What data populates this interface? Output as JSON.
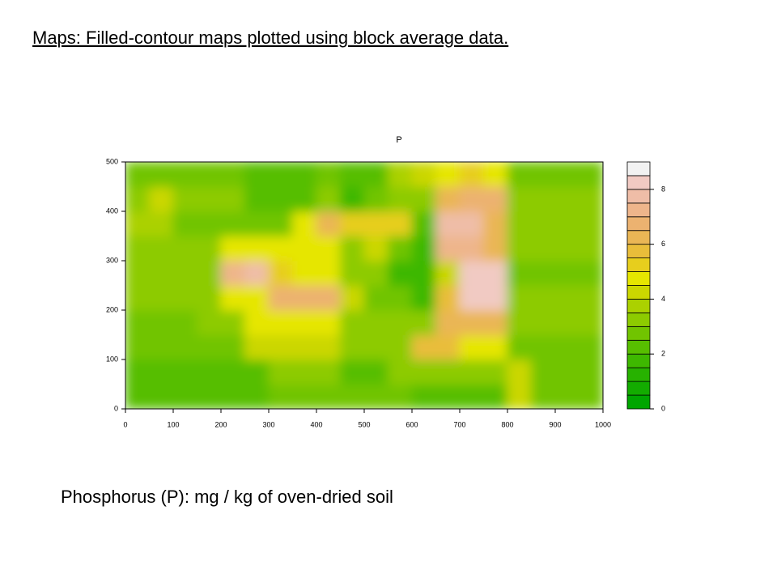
{
  "slide_title": "Maps: Filled-contour maps plotted using block average data.",
  "caption": "Phosphorus (P): mg / kg of oven-dried soil",
  "chart_data": {
    "type": "filled-contour",
    "title": "P",
    "x_edges": [
      0,
      50,
      100,
      150,
      200,
      250,
      300,
      350,
      400,
      450,
      500,
      550,
      600,
      650,
      700,
      750,
      800,
      850,
      900,
      950,
      1000
    ],
    "y_edges": [
      0,
      50,
      100,
      150,
      200,
      250,
      300,
      350,
      400,
      450,
      500
    ],
    "z": [
      [
        2,
        2,
        2,
        2,
        2,
        2,
        2.5,
        2.5,
        2.5,
        2.5,
        2.5,
        2.5,
        2,
        2,
        2,
        2,
        4,
        2.5,
        2.5,
        2.5
      ],
      [
        2,
        2,
        2,
        2,
        2,
        2,
        3,
        3,
        3,
        2,
        2,
        3,
        3,
        3,
        3,
        3,
        4,
        2.5,
        2.5,
        2.5
      ],
      [
        2.5,
        2.5,
        2.5,
        2.5,
        2.5,
        4,
        4,
        4,
        4,
        3,
        3,
        3,
        5.5,
        5.5,
        4.5,
        4.5,
        2.5,
        2.5,
        2.5,
        2.5
      ],
      [
        2.5,
        2.5,
        2.5,
        3,
        3,
        4.5,
        4.5,
        4.5,
        4.5,
        3,
        3,
        3,
        3,
        6,
        6,
        6,
        3,
        3,
        3,
        3
      ],
      [
        3,
        3,
        3,
        3,
        4.5,
        4.5,
        6.5,
        6.5,
        6.5,
        4,
        2.5,
        2.5,
        1.5,
        5.5,
        8,
        8,
        3,
        3,
        3,
        3
      ],
      [
        3,
        3,
        3,
        3,
        7,
        7.5,
        5,
        4.5,
        4.5,
        3,
        3,
        1.5,
        1.5,
        4,
        8,
        8,
        2.5,
        2.5,
        2.5,
        2.5
      ],
      [
        3,
        3,
        3,
        3,
        4.5,
        4.5,
        4.5,
        4.5,
        4.5,
        3,
        4,
        2.5,
        1.5,
        7,
        7,
        6,
        3,
        3,
        3,
        3
      ],
      [
        3.5,
        3.5,
        2.5,
        2.5,
        2.5,
        2.5,
        2.5,
        4.5,
        6,
        5,
        5,
        5,
        2,
        7.5,
        7.5,
        6,
        3,
        3,
        3,
        3
      ],
      [
        3,
        4,
        3,
        3,
        3,
        2,
        2,
        2,
        3,
        1.5,
        2.5,
        3,
        3,
        6,
        6.5,
        6.5,
        3,
        3,
        3,
        3
      ],
      [
        2.5,
        2.5,
        2.5,
        2.5,
        2.5,
        2,
        2,
        2,
        2.5,
        2,
        2,
        3.5,
        4,
        4.5,
        5,
        4.5,
        2.5,
        2.5,
        2.5,
        2.5
      ]
    ],
    "xlim": [
      0,
      1000
    ],
    "xticks": [
      0,
      100,
      200,
      300,
      400,
      500,
      600,
      700,
      800,
      900,
      1000
    ],
    "ylim": [
      0,
      500
    ],
    "yticks": [
      0,
      100,
      200,
      300,
      400,
      500
    ],
    "levels": [
      0,
      0.5,
      1,
      1.5,
      2,
      2.5,
      3,
      3.5,
      4,
      4.5,
      5,
      5.5,
      6,
      6.5,
      7,
      7.5,
      8,
      8.5,
      9
    ],
    "level_colors": [
      "#00A600",
      "#13AC00",
      "#27B200",
      "#3EB800",
      "#57BE00",
      "#71C400",
      "#8DCB00",
      "#ABD100",
      "#CBD700",
      "#E6E600",
      "#E7CE1D",
      "#E9BD3A",
      "#EAB655",
      "#ECB270",
      "#EEB58B",
      "#EFBDA7",
      "#F1CAC3",
      "#F2F2F2"
    ],
    "colorbar_ticks": [
      0,
      2,
      4,
      6,
      8
    ]
  }
}
